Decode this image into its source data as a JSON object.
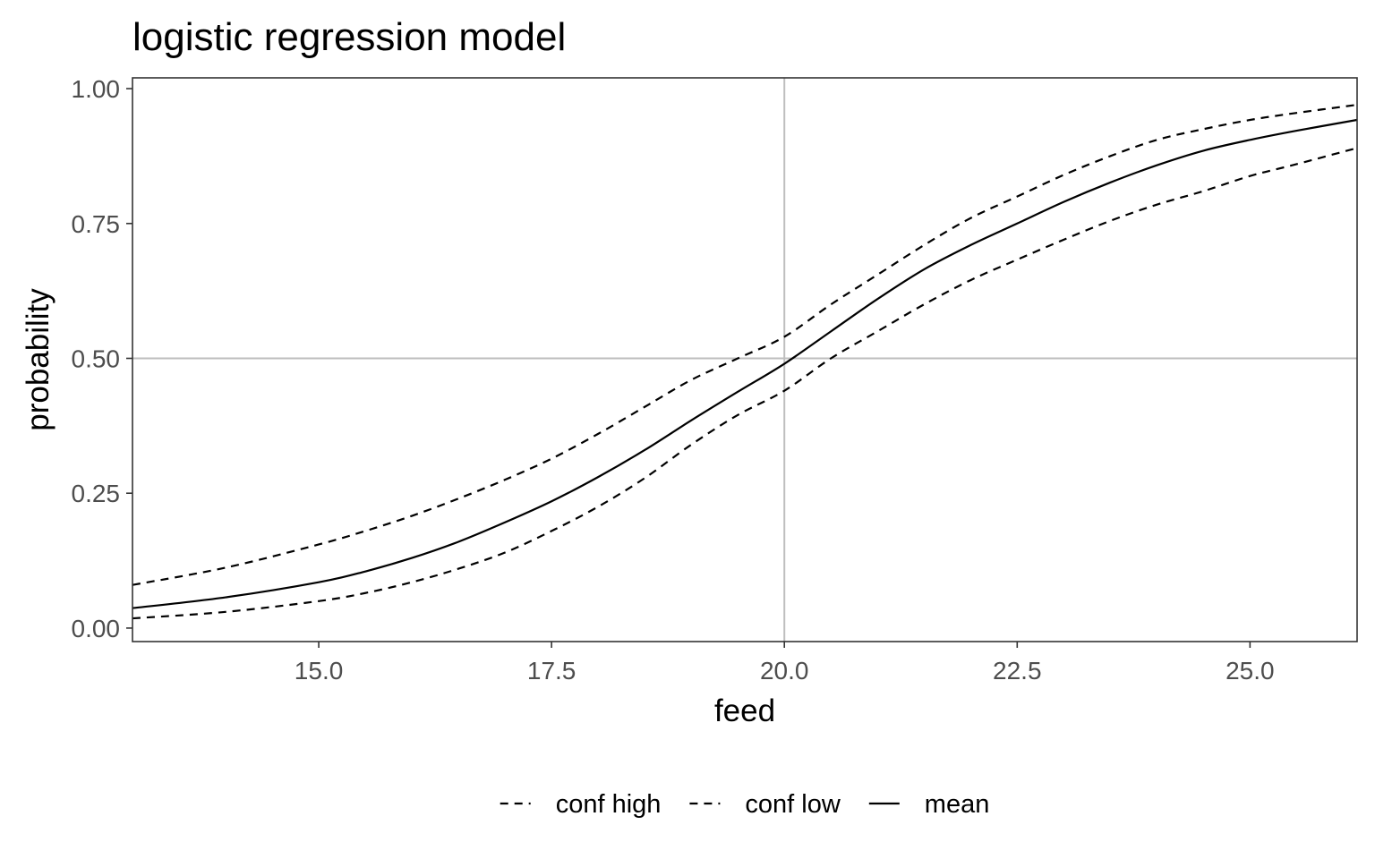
{
  "chart_data": {
    "type": "line",
    "title": "logistic regression model",
    "xlabel": "feed",
    "ylabel": "probability",
    "xlim": [
      13.0,
      26.15
    ],
    "ylim": [
      -0.025,
      1.02
    ],
    "x_ticks": [
      15.0,
      17.5,
      20.0,
      22.5,
      25.0
    ],
    "x_tick_labels": [
      "15.0",
      "17.5",
      "20.0",
      "22.5",
      "25.0"
    ],
    "y_ticks": [
      0.0,
      0.25,
      0.5,
      0.75,
      1.0
    ],
    "y_tick_labels": [
      "0.00",
      "0.25",
      "0.50",
      "0.75",
      "1.00"
    ],
    "reference_lines": {
      "x": 20.0,
      "y": 0.5,
      "color": "#bebebe"
    },
    "grid": false,
    "legend_position": "bottom",
    "x": [
      13.0,
      14.0,
      15.0,
      15.5,
      16.0,
      16.5,
      17.0,
      17.5,
      18.0,
      18.5,
      19.0,
      19.5,
      20.0,
      20.5,
      21.0,
      21.5,
      22.0,
      22.5,
      23.0,
      23.5,
      24.0,
      24.5,
      25.0,
      25.5,
      26.15
    ],
    "series": [
      {
        "name": "conf high",
        "line_style": "dashed",
        "color": "#000000",
        "values": [
          0.08,
          0.112,
          0.155,
          0.18,
          0.208,
          0.24,
          0.275,
          0.314,
          0.36,
          0.41,
          0.46,
          0.5,
          0.54,
          0.6,
          0.655,
          0.71,
          0.76,
          0.8,
          0.84,
          0.875,
          0.905,
          0.925,
          0.942,
          0.955,
          0.97
        ]
      },
      {
        "name": "conf low",
        "line_style": "dashed",
        "color": "#000000",
        "values": [
          0.018,
          0.03,
          0.05,
          0.065,
          0.085,
          0.11,
          0.14,
          0.18,
          0.225,
          0.278,
          0.34,
          0.395,
          0.44,
          0.5,
          0.55,
          0.6,
          0.645,
          0.683,
          0.72,
          0.755,
          0.785,
          0.81,
          0.838,
          0.86,
          0.89
        ]
      },
      {
        "name": "mean",
        "line_style": "solid",
        "color": "#000000",
        "values": [
          0.037,
          0.057,
          0.085,
          0.105,
          0.13,
          0.16,
          0.196,
          0.235,
          0.28,
          0.33,
          0.385,
          0.438,
          0.49,
          0.55,
          0.61,
          0.665,
          0.71,
          0.75,
          0.79,
          0.826,
          0.858,
          0.885,
          0.905,
          0.922,
          0.942
        ]
      }
    ]
  }
}
